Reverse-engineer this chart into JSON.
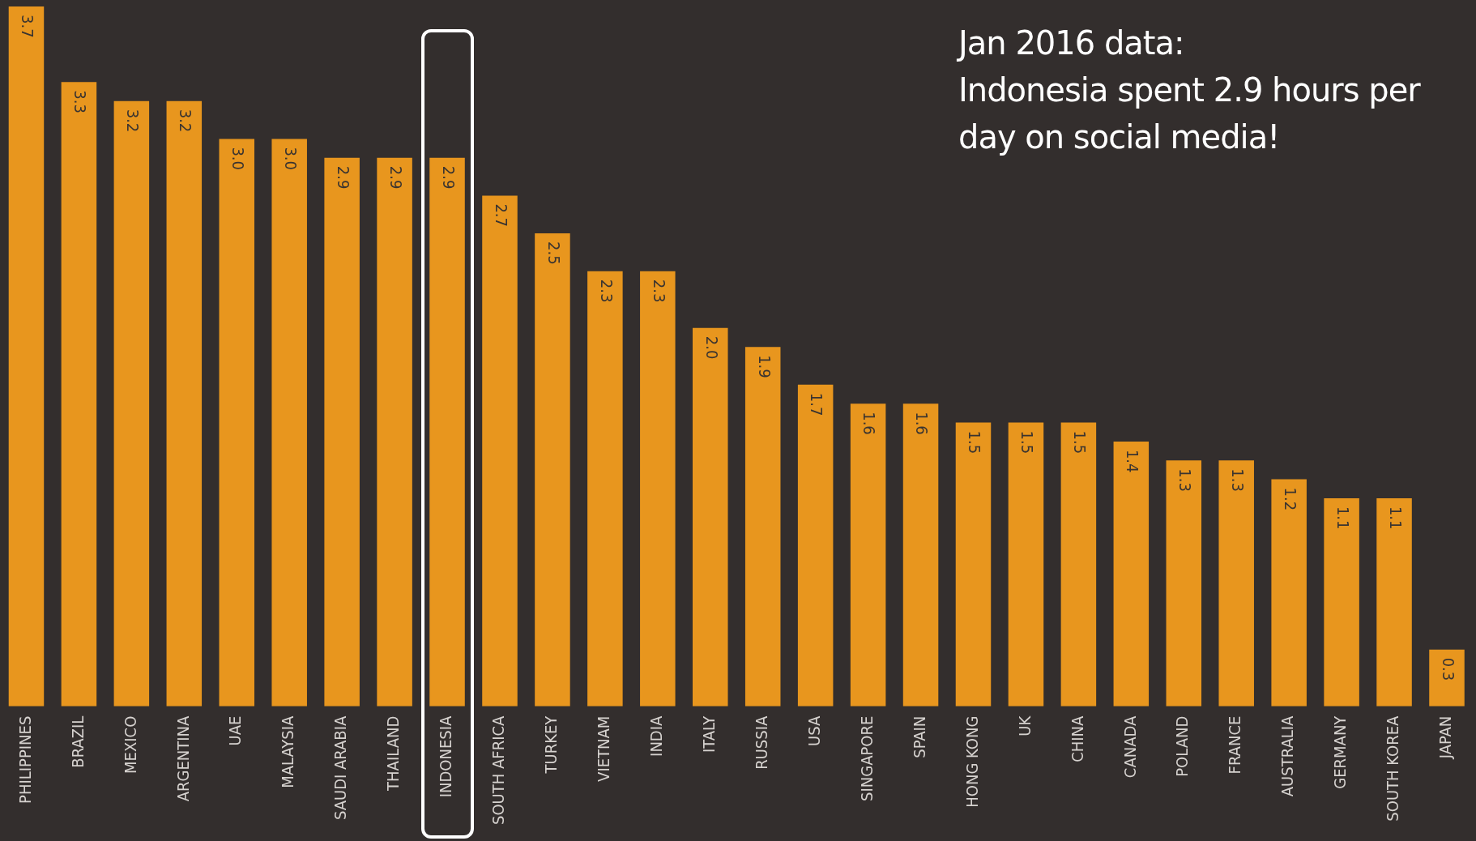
{
  "chart_data": {
    "type": "bar",
    "categories": [
      "PHILIPPINES",
      "BRAZIL",
      "MEXICO",
      "ARGENTINA",
      "UAE",
      "MALAYSIA",
      "SAUDI ARABIA",
      "THAILAND",
      "INDONESIA",
      "SOUTH AFRICA",
      "TURKEY",
      "VIETNAM",
      "INDIA",
      "ITALY",
      "RUSSIA",
      "USA",
      "SINGAPORE",
      "SPAIN",
      "HONG KONG",
      "UK",
      "CHINA",
      "CANADA",
      "POLAND",
      "FRANCE",
      "AUSTRALIA",
      "GERMANY",
      "SOUTH KOREA",
      "JAPAN"
    ],
    "values": [
      3.7,
      3.3,
      3.2,
      3.2,
      3.0,
      3.0,
      2.9,
      2.9,
      2.9,
      2.7,
      2.5,
      2.3,
      2.3,
      2.0,
      1.9,
      1.7,
      1.6,
      1.6,
      1.5,
      1.5,
      1.5,
      1.4,
      1.3,
      1.3,
      1.2,
      1.1,
      1.1,
      0.3
    ],
    "value_labels": [
      "3.7",
      "3.3",
      "3.2",
      "3.2",
      "3.0",
      "3.0",
      "2.9",
      "2.9",
      "2.9",
      "2.7",
      "2.5",
      "2.3",
      "2.3",
      "2.0",
      "1.9",
      "1.7",
      "1.6",
      "1.6",
      "1.5",
      "1.5",
      "1.5",
      "1.4",
      "1.3",
      "1.3",
      "1.2",
      "1.1",
      "1.1",
      "0.3"
    ],
    "color": "#e8961e",
    "annotations": [
      "Jan 2016 data:\nIndonesia spent 2.9 hours per\nday on social media!"
    ],
    "grid": false,
    "legend": false,
    "tick_labels": "x"
  }
}
